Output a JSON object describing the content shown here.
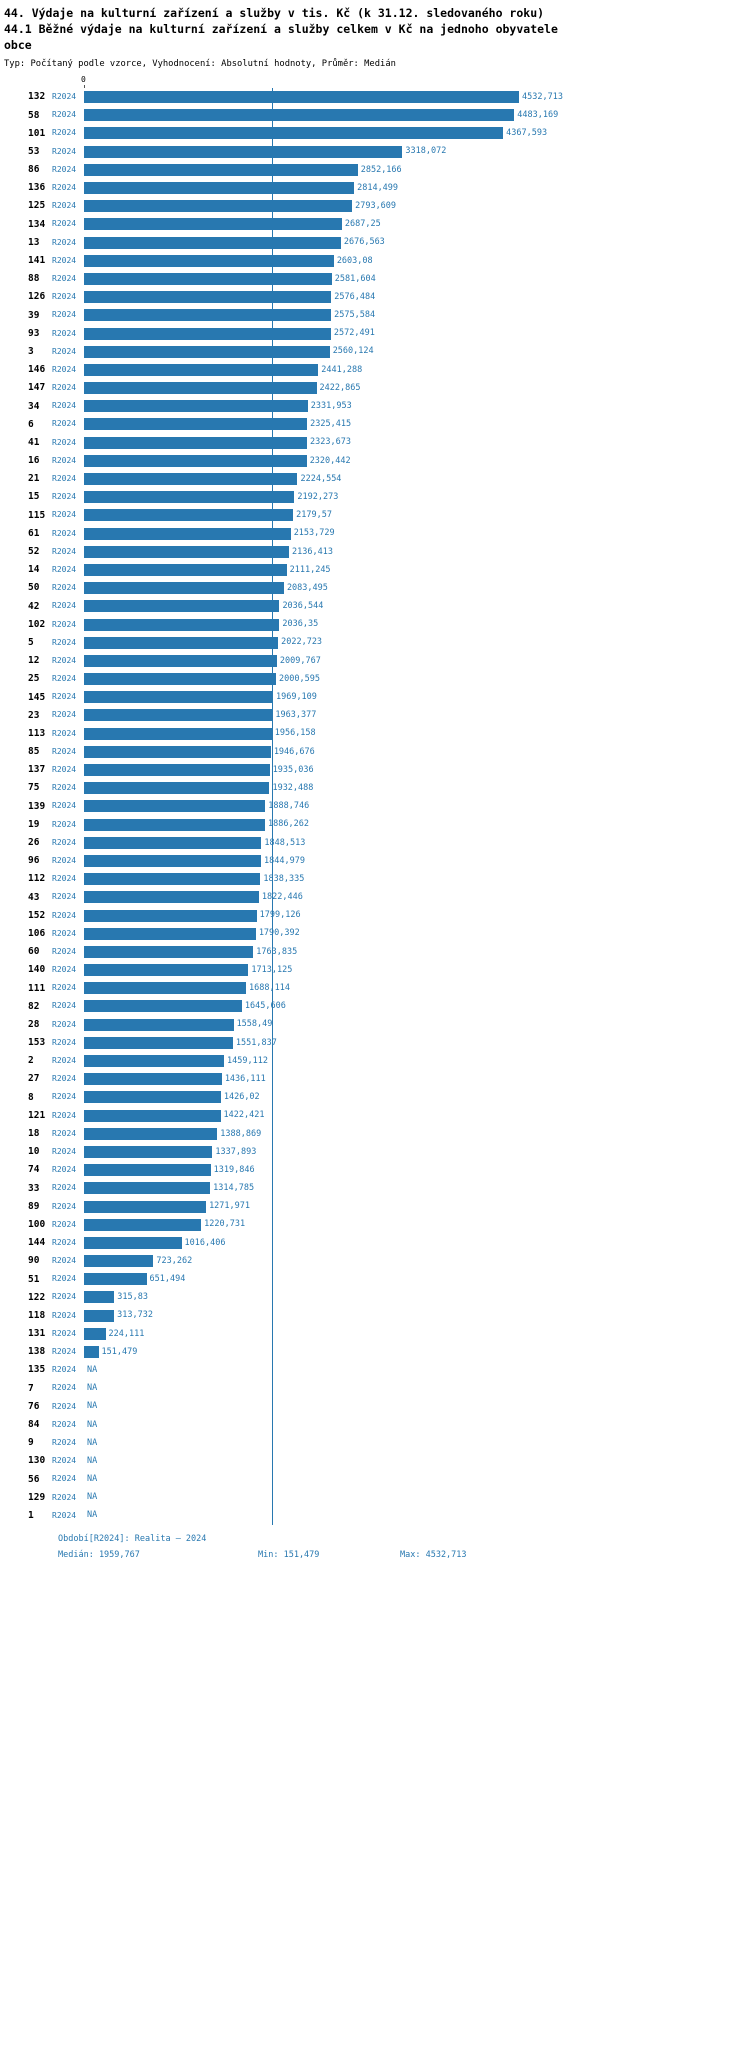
{
  "header": {
    "lines": [
      "44. Výdaje na kulturní zařízení a služby v tis. Kč (k 31.12. sledovaného roku)",
      "44.1 Běžné výdaje na kulturní zařízení a služby celkem v Kč na jednoho obyvatele",
      "obce"
    ],
    "meta": "Typ: Počítaný podle vzorce, Vyhodnocení: Absolutní hodnoty, Průměr: Medián"
  },
  "axis": {
    "zero_label": "0"
  },
  "chart_data": {
    "type": "bar",
    "orientation": "horizontal",
    "title": "44. Výdaje na kulturní zařízení a služby v tis. Kč (k 31.12. sledovaného roku)",
    "subtitle": "44.1 Běžné výdaje na kulturní zařízení a služby celkem v Kč na jednoho obyvatele obce",
    "period": "R2024",
    "xlim": [
      0,
      4532.713
    ],
    "median": 1959.767,
    "grid": false,
    "legend": "none",
    "colors": {
      "bar": "#2878b0",
      "accent": "#2878b0",
      "row_id": "#000000"
    },
    "categories": [
      "132",
      "58",
      "101",
      "53",
      "86",
      "136",
      "125",
      "134",
      "13",
      "141",
      "88",
      "126",
      "39",
      "93",
      "3",
      "146",
      "147",
      "34",
      "6",
      "41",
      "16",
      "21",
      "15",
      "115",
      "61",
      "52",
      "14",
      "50",
      "42",
      "102",
      "5",
      "12",
      "25",
      "145",
      "23",
      "113",
      "85",
      "137",
      "75",
      "139",
      "19",
      "26",
      "96",
      "112",
      "43",
      "152",
      "106",
      "60",
      "140",
      "111",
      "82",
      "28",
      "153",
      "2",
      "27",
      "8",
      "121",
      "18",
      "10",
      "74",
      "33",
      "89",
      "100",
      "144",
      "90",
      "51",
      "122",
      "118",
      "131",
      "138",
      "135",
      "7",
      "76",
      "84",
      "9",
      "130",
      "56",
      "129",
      "1"
    ],
    "values": [
      4532.713,
      4483.169,
      4367.593,
      3318.072,
      2852.166,
      2814.499,
      2793.609,
      2687.25,
      2676.563,
      2603.08,
      2581.604,
      2576.484,
      2575.584,
      2572.491,
      2560.124,
      2441.288,
      2422.865,
      2331.953,
      2325.415,
      2323.673,
      2320.442,
      2224.554,
      2192.273,
      2179.57,
      2153.729,
      2136.413,
      2111.245,
      2083.495,
      2036.544,
      2036.35,
      2022.723,
      2009.767,
      2000.595,
      1969.109,
      1963.377,
      1956.158,
      1946.676,
      1935.036,
      1932.488,
      1888.746,
      1886.262,
      1848.513,
      1844.979,
      1838.335,
      1822.446,
      1799.126,
      1790.392,
      1763.835,
      1713.125,
      1688.114,
      1645.606,
      1558.49,
      1551.837,
      1459.112,
      1436.111,
      1426.02,
      1422.421,
      1388.869,
      1337.893,
      1319.846,
      1314.785,
      1271.971,
      1220.731,
      1016.406,
      723.262,
      651.494,
      315.83,
      313.732,
      224.111,
      151.479,
      null,
      null,
      null,
      null,
      null,
      null,
      null,
      null,
      null
    ],
    "value_labels": [
      "4532,713",
      "4483,169",
      "4367,593",
      "3318,072",
      "2852,166",
      "2814,499",
      "2793,609",
      "2687,25",
      "2676,563",
      "2603,08",
      "2581,604",
      "2576,484",
      "2575,584",
      "2572,491",
      "2560,124",
      "2441,288",
      "2422,865",
      "2331,953",
      "2325,415",
      "2323,673",
      "2320,442",
      "2224,554",
      "2192,273",
      "2179,57",
      "2153,729",
      "2136,413",
      "2111,245",
      "2083,495",
      "2036,544",
      "2036,35",
      "2022,723",
      "2009,767",
      "2000,595",
      "1969,109",
      "1963,377",
      "1956,158",
      "1946,676",
      "1935,036",
      "1932,488",
      "1888,746",
      "1886,262",
      "1848,513",
      "1844,979",
      "1838,335",
      "1822,446",
      "1799,126",
      "1790,392",
      "1763,835",
      "1713,125",
      "1688,114",
      "1645,606",
      "1558,49",
      "1551,837",
      "1459,112",
      "1436,111",
      "1426,02",
      "1422,421",
      "1388,869",
      "1337,893",
      "1319,846",
      "1314,785",
      "1271,971",
      "1220,731",
      "1016,406",
      "723,262",
      "651,494",
      "315,83",
      "313,732",
      "224,111",
      "151,479",
      "NA",
      "NA",
      "NA",
      "NA",
      "NA",
      "NA",
      "NA",
      "NA",
      "NA"
    ]
  },
  "footer": {
    "period_line": "Období[R2024]: Realita – 2024",
    "median_label": "Medián: 1959,767",
    "min_label": "Min: 151,479",
    "max_label": "Max: 4532,713"
  }
}
